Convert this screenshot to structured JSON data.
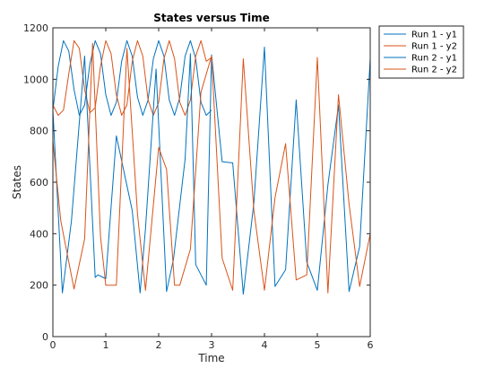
{
  "chart_data": {
    "type": "line",
    "title": "States versus Time",
    "xlabel": "Time",
    "ylabel": "States",
    "xlim": [
      0,
      6
    ],
    "ylim": [
      0,
      1200
    ],
    "xticks": [
      "0",
      "1",
      "2",
      "3",
      "4",
      "5",
      "6"
    ],
    "yticks": [
      "0",
      "200",
      "400",
      "600",
      "800",
      "1000",
      "1200"
    ],
    "grid": false,
    "legend_position": "top-right-outside",
    "colors": {
      "blue": "#0072BD",
      "orange": "#D95319",
      "axis": "#262626"
    },
    "series": [
      {
        "name": "Run 1 - y1",
        "color": "#0072BD",
        "x": [
          0,
          0.1,
          0.2,
          0.3,
          0.4,
          0.5,
          0.6,
          0.7,
          0.8,
          0.9,
          1.0,
          1.1,
          1.2,
          1.3,
          1.4,
          1.5,
          1.6,
          1.7,
          1.8,
          1.9,
          2.0,
          2.1,
          2.2,
          2.3,
          2.4,
          2.5,
          2.6,
          2.7,
          2.8,
          2.9,
          3.0
        ],
        "y": [
          880,
          1050,
          1150,
          1110,
          960,
          860,
          900,
          1060,
          1150,
          1100,
          940,
          860,
          910,
          1070,
          1150,
          1090,
          930,
          860,
          920,
          1080,
          1150,
          1090,
          920,
          860,
          930,
          1090,
          1150,
          1080,
          910,
          860,
          880
        ]
      },
      {
        "name": "Run 1 - y2",
        "color": "#D95319",
        "x": [
          0,
          0.1,
          0.2,
          0.3,
          0.4,
          0.5,
          0.6,
          0.7,
          0.8,
          0.9,
          1.0,
          1.1,
          1.2,
          1.3,
          1.4,
          1.5,
          1.6,
          1.7,
          1.8,
          1.9,
          2.0,
          2.1,
          2.2,
          2.3,
          2.4,
          2.5,
          2.6,
          2.7,
          2.8,
          2.9,
          3.0
        ],
        "y": [
          900,
          860,
          880,
          1020,
          1150,
          1120,
          960,
          870,
          890,
          1050,
          1150,
          1100,
          940,
          860,
          900,
          1070,
          1150,
          1090,
          920,
          860,
          910,
          1080,
          1150,
          1080,
          910,
          860,
          920,
          1090,
          1150,
          1070,
          1085
        ]
      },
      {
        "name": "Run 2 - y1",
        "color": "#0072BD",
        "x": [
          0.0,
          0.18,
          0.35,
          0.6,
          0.8,
          0.85,
          1.0,
          1.2,
          1.5,
          1.65,
          1.75,
          1.95,
          2.15,
          2.28,
          2.5,
          2.6,
          2.7,
          2.9,
          3.0,
          3.2,
          3.4,
          3.6,
          3.8,
          4.0,
          4.2,
          4.4,
          4.6,
          4.8,
          5.0,
          5.2,
          5.4,
          5.6,
          5.8,
          6.0
        ],
        "y": [
          880,
          170,
          450,
          1090,
          230,
          240,
          225,
          780,
          490,
          170,
          420,
          1040,
          175,
          300,
          690,
          1100,
          280,
          200,
          1095,
          680,
          675,
          165,
          520,
          1125,
          195,
          260,
          920,
          290,
          180,
          590,
          900,
          175,
          350,
          1080
        ]
      },
      {
        "name": "Run 2 - y2",
        "color": "#D95319",
        "x": [
          0.0,
          0.15,
          0.4,
          0.6,
          0.75,
          0.9,
          1.0,
          1.2,
          1.4,
          1.6,
          1.75,
          2.0,
          2.15,
          2.3,
          2.4,
          2.6,
          2.8,
          3.0,
          3.2,
          3.4,
          3.6,
          3.8,
          4.0,
          4.2,
          4.4,
          4.6,
          4.8,
          5.0,
          5.2,
          5.4,
          5.6,
          5.8,
          6.0
        ],
        "y": [
          760,
          450,
          185,
          380,
          1140,
          390,
          200,
          200,
          1120,
          475,
          180,
          735,
          650,
          200,
          200,
          340,
          950,
          1090,
          305,
          180,
          1080,
          490,
          180,
          540,
          750,
          220,
          240,
          1085,
          170,
          940,
          515,
          195,
          400
        ]
      }
    ]
  }
}
